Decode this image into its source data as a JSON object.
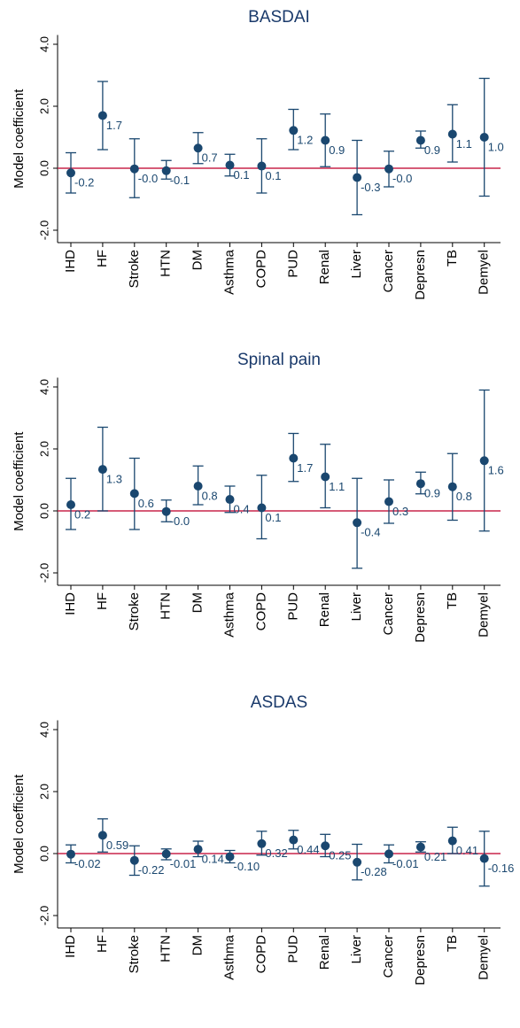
{
  "chart_data": [
    {
      "type": "errorbar",
      "title": "BASDAI",
      "y_label": "Model coefficient",
      "categories": [
        "IHD",
        "HF",
        "Stroke",
        "HTN",
        "DM",
        "Asthma",
        "COPD",
        "PUD",
        "Renal",
        "Liver",
        "Cancer",
        "Depresn",
        "TB",
        "Demyel"
      ],
      "values": [
        -0.15,
        1.7,
        -0.02,
        -0.08,
        0.65,
        0.1,
        0.07,
        1.22,
        0.9,
        -0.3,
        -0.02,
        0.9,
        1.1,
        1.0
      ],
      "value_labels": [
        "-0.2",
        "1.7",
        "-0.0",
        "-0.1",
        "0.7",
        "0.1",
        "0.1",
        "1.2",
        "0.9",
        "-0.3",
        "-0.0",
        "0.9",
        "1.1",
        "1.0"
      ],
      "lower": [
        -0.8,
        0.6,
        -0.95,
        -0.35,
        0.15,
        -0.25,
        -0.8,
        0.6,
        0.05,
        -1.5,
        -0.6,
        0.65,
        0.2,
        -0.9
      ],
      "upper": [
        0.5,
        2.8,
        0.95,
        0.25,
        1.15,
        0.45,
        0.95,
        1.9,
        1.75,
        0.9,
        0.55,
        1.2,
        2.05,
        2.9
      ],
      "color": "#1a476f",
      "reference_line": 0,
      "reference_color": "#c8254a",
      "ylim": [
        -2.4,
        4.3
      ],
      "yticks": [
        {
          "value": -2,
          "label": "-2.0"
        },
        {
          "value": 0,
          "label": "0.0"
        },
        {
          "value": 2,
          "label": "2.0"
        },
        {
          "value": 4,
          "label": "4.0"
        }
      ]
    },
    {
      "type": "errorbar",
      "title": "Spinal pain",
      "y_label": "Model coefficient",
      "categories": [
        "IHD",
        "HF",
        "Stroke",
        "HTN",
        "DM",
        "Asthma",
        "COPD",
        "PUD",
        "Renal",
        "Liver",
        "Cancer",
        "Depresn",
        "TB",
        "Demyel"
      ],
      "values": [
        0.2,
        1.34,
        0.56,
        -0.02,
        0.8,
        0.37,
        0.1,
        1.7,
        1.1,
        -0.38,
        0.3,
        0.88,
        0.78,
        1.62
      ],
      "value_labels": [
        "0.2",
        "1.3",
        "0.6",
        "-0.0",
        "0.8",
        "0.4",
        "0.1",
        "1.7",
        "1.1",
        "-0.4",
        "0.3",
        "0.9",
        "0.8",
        "1.6"
      ],
      "lower": [
        -0.6,
        0,
        -0.6,
        -0.35,
        0.2,
        -0.05,
        -0.9,
        0.95,
        0.1,
        -1.85,
        -0.4,
        0.55,
        -0.3,
        -0.65
      ],
      "upper": [
        1.05,
        2.7,
        1.7,
        0.35,
        1.45,
        0.8,
        1.15,
        2.5,
        2.15,
        1.05,
        1.0,
        1.25,
        1.85,
        3.9
      ],
      "color": "#1a476f",
      "reference_line": 0,
      "reference_color": "#c8254a",
      "ylim": [
        -2.4,
        4.3
      ],
      "yticks": [
        {
          "value": -2,
          "label": "-2.0"
        },
        {
          "value": 0,
          "label": "0.0"
        },
        {
          "value": 2,
          "label": "2.0"
        },
        {
          "value": 4,
          "label": "4.0"
        }
      ]
    },
    {
      "type": "errorbar",
      "title": "ASDAS",
      "y_label": "Model coefficient",
      "categories": [
        "IHD",
        "HF",
        "Stroke",
        "HTN",
        "DM",
        "Asthma",
        "COPD",
        "PUD",
        "Renal",
        "Liver",
        "Cancer",
        "Depresn",
        "TB",
        "Demyel"
      ],
      "values": [
        -0.02,
        0.59,
        -0.22,
        -0.01,
        0.14,
        -0.1,
        0.32,
        0.44,
        0.25,
        -0.28,
        -0.01,
        0.21,
        0.41,
        -0.16
      ],
      "value_labels": [
        "-0.02",
        "0.59",
        "-0.22",
        "-0.01",
        "0.14",
        "-0.10",
        "0.32",
        "0.44",
        "0.25",
        "-0.28",
        "-0.01",
        "0.21",
        "0.41",
        "-0.16"
      ],
      "lower": [
        -0.3,
        0.05,
        -0.7,
        -0.2,
        -0.1,
        -0.3,
        -0.05,
        0.15,
        -0.1,
        -0.85,
        -0.3,
        0.05,
        0,
        -1.05
      ],
      "upper": [
        0.28,
        1.12,
        0.25,
        0.15,
        0.4,
        0.1,
        0.72,
        0.75,
        0.62,
        0.3,
        0.28,
        0.38,
        0.85,
        0.72
      ],
      "color": "#1a476f",
      "reference_line": 0,
      "reference_color": "#c8254a",
      "ylim": [
        -2.4,
        4.3
      ],
      "yticks": [
        {
          "value": -2,
          "label": "-2.0"
        },
        {
          "value": 0,
          "label": "0.0"
        },
        {
          "value": 2,
          "label": "2.0"
        },
        {
          "value": 4,
          "label": "4.0"
        }
      ]
    }
  ]
}
